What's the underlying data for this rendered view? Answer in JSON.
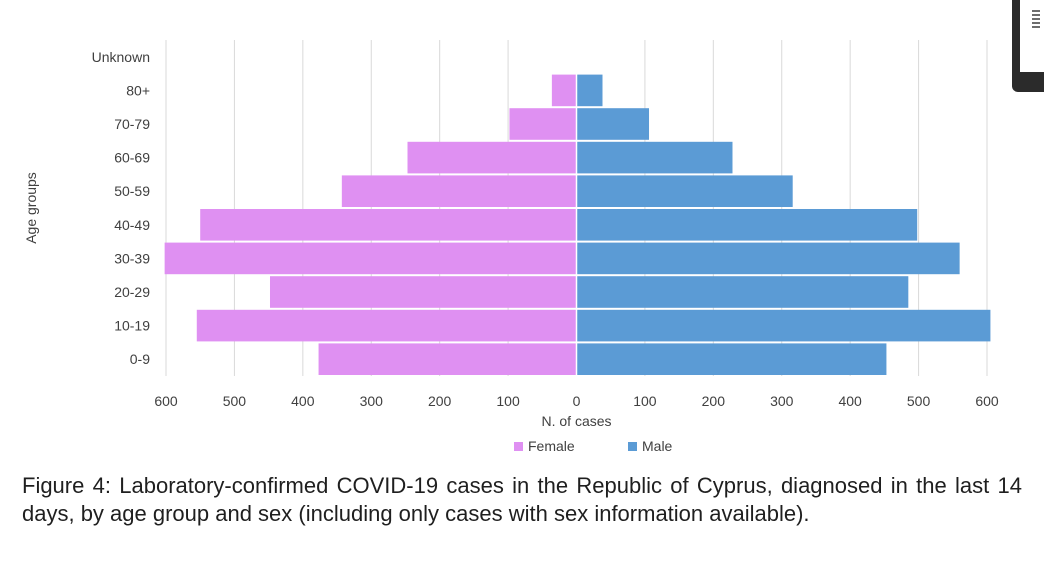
{
  "chart_data": {
    "type": "bar",
    "orientation": "horizontal",
    "layout": "population-pyramid",
    "categories": [
      "0-9",
      "10-19",
      "20-29",
      "30-39",
      "40-49",
      "50-59",
      "60-69",
      "70-79",
      "80+",
      "Unknown"
    ],
    "series": [
      {
        "name": "Female",
        "color": "#df90f2",
        "values": [
          377,
          555,
          448,
          602,
          550,
          343,
          247,
          98,
          36,
          0
        ]
      },
      {
        "name": "Male",
        "color": "#5b9bd5",
        "values": [
          453,
          605,
          485,
          560,
          498,
          316,
          228,
          106,
          38,
          0
        ]
      }
    ],
    "xlabel": "N. of cases",
    "ylabel": "Age groups",
    "xticks": [
      "600",
      "500",
      "400",
      "300",
      "200",
      "100",
      "0",
      "100",
      "200",
      "300",
      "400",
      "500",
      "600"
    ],
    "xlim": [
      -600,
      600
    ],
    "grid": true,
    "legend": "bottom-center"
  },
  "caption": "Figure 4: Laboratory-confirmed COVID-19 cases in the Republic of Cyprus, diagnosed in the last 14 days, by age group and sex (including only cases with sex information available)."
}
